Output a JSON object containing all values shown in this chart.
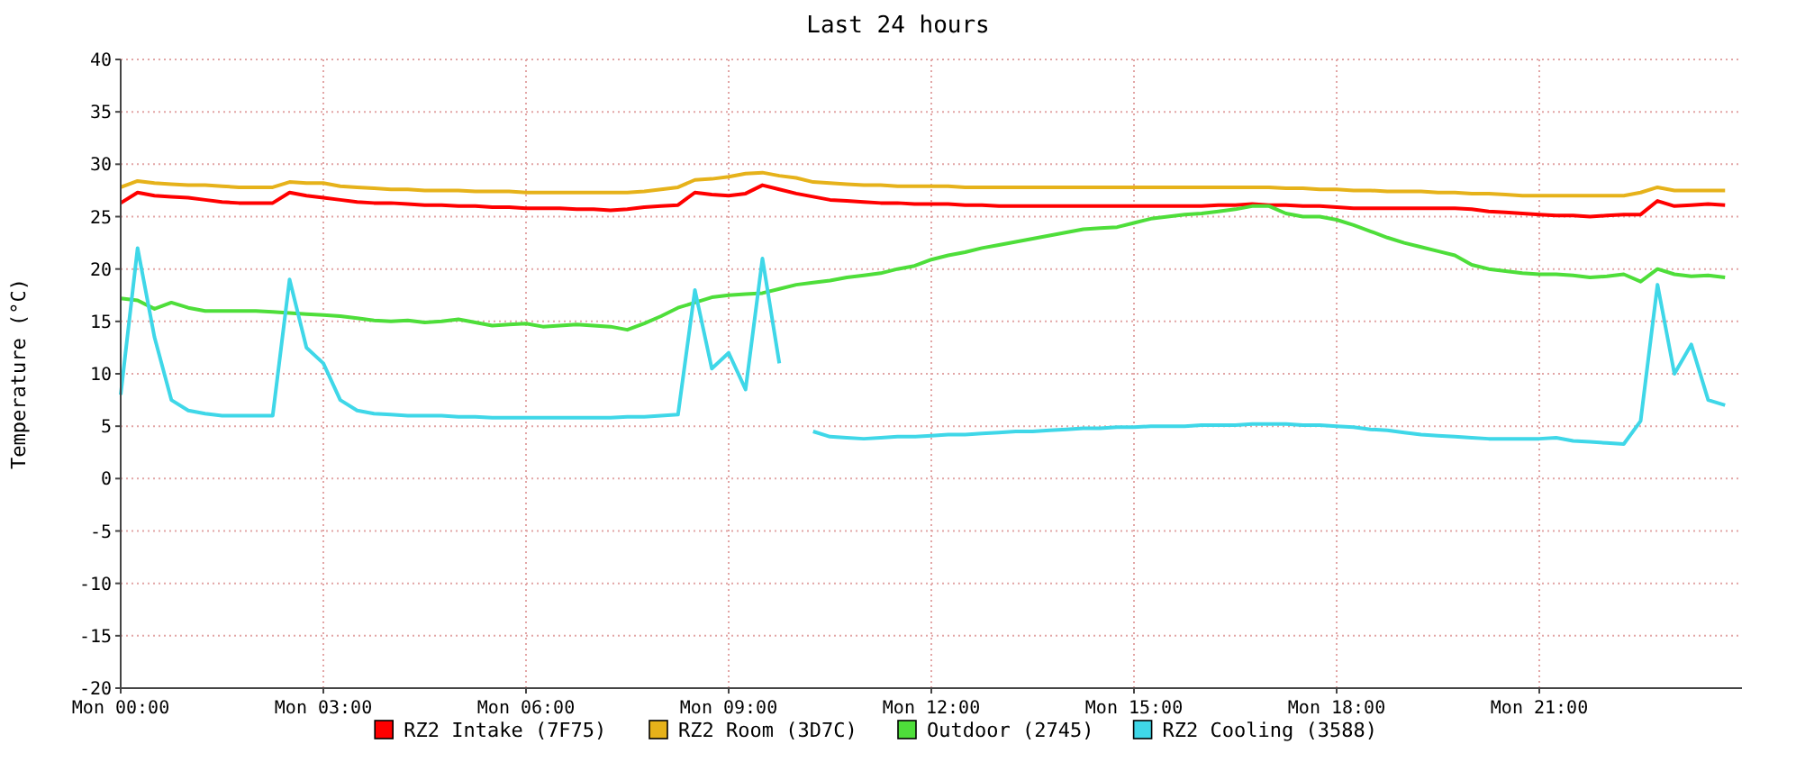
{
  "chart_data": {
    "type": "line",
    "title": "Last 24 hours",
    "ylabel": "Temperature (°C)",
    "categories": [
      "Mon 00:00",
      null,
      null,
      null,
      null,
      null,
      null,
      null,
      null,
      null,
      null,
      null,
      "Mon 03:00",
      null,
      null,
      null,
      null,
      null,
      null,
      null,
      null,
      null,
      null,
      null,
      "Mon 06:00",
      null,
      null,
      null,
      null,
      null,
      null,
      null,
      null,
      null,
      null,
      null,
      "Mon 09:00",
      null,
      null,
      null,
      null,
      null,
      null,
      null,
      null,
      null,
      null,
      null,
      "Mon 12:00",
      null,
      null,
      null,
      null,
      null,
      null,
      null,
      null,
      null,
      null,
      null,
      "Mon 15:00",
      null,
      null,
      null,
      null,
      null,
      null,
      null,
      null,
      null,
      null,
      null,
      "Mon 18:00",
      null,
      null,
      null,
      null,
      null,
      null,
      null,
      null,
      null,
      null,
      null,
      "Mon 21:00",
      null,
      null,
      null,
      null,
      null,
      null,
      null,
      null,
      null,
      null,
      null
    ],
    "ylim": [
      -20,
      40
    ],
    "yticks": [
      -20,
      -15,
      -10,
      -5,
      0,
      5,
      10,
      15,
      20,
      25,
      30,
      35,
      40
    ],
    "grid": true,
    "legend": "bottom",
    "marker": "none",
    "line_style": "solid",
    "series": [
      {
        "name": "RZ2 Intake (7F75)",
        "color": "#ff0000",
        "values": [
          26.3,
          27.3,
          27,
          26.9,
          26.8,
          26.6,
          26.4,
          26.3,
          26.3,
          26.3,
          27.3,
          27,
          26.8,
          26.6,
          26.4,
          26.3,
          26.3,
          26.2,
          26.1,
          26.1,
          26,
          26,
          25.9,
          25.9,
          25.8,
          25.8,
          25.8,
          25.7,
          25.7,
          25.6,
          25.7,
          25.9,
          26,
          26.1,
          27.3,
          27.1,
          27,
          27.2,
          28,
          27.6,
          27.2,
          26.9,
          26.6,
          26.5,
          26.4,
          26.3,
          26.3,
          26.2,
          26.2,
          26.2,
          26.1,
          26.1,
          26,
          26,
          26,
          26,
          26,
          26,
          26,
          26,
          26,
          26,
          26,
          26,
          26,
          26.1,
          26.1,
          26.2,
          26.1,
          26.1,
          26,
          26,
          25.9,
          25.8,
          25.8,
          25.8,
          25.8,
          25.8,
          25.8,
          25.8,
          25.7,
          25.5,
          25.4,
          25.3,
          25.2,
          25.1,
          25.1,
          25,
          25.1,
          25.2,
          25.2,
          26.5,
          26,
          26.1,
          26.2,
          26.1
        ]
      },
      {
        "name": "RZ2 Room (3D7C)",
        "color": "#e6b21a",
        "values": [
          27.8,
          28.4,
          28.2,
          28.1,
          28,
          28,
          27.9,
          27.8,
          27.8,
          27.8,
          28.3,
          28.2,
          28.2,
          27.9,
          27.8,
          27.7,
          27.6,
          27.6,
          27.5,
          27.5,
          27.5,
          27.4,
          27.4,
          27.4,
          27.3,
          27.3,
          27.3,
          27.3,
          27.3,
          27.3,
          27.3,
          27.4,
          27.6,
          27.8,
          28.5,
          28.6,
          28.8,
          29.1,
          29.2,
          28.9,
          28.7,
          28.3,
          28.2,
          28.1,
          28,
          28,
          27.9,
          27.9,
          27.9,
          27.9,
          27.8,
          27.8,
          27.8,
          27.8,
          27.8,
          27.8,
          27.8,
          27.8,
          27.8,
          27.8,
          27.8,
          27.8,
          27.8,
          27.8,
          27.8,
          27.8,
          27.8,
          27.8,
          27.8,
          27.7,
          27.7,
          27.6,
          27.6,
          27.5,
          27.5,
          27.4,
          27.4,
          27.4,
          27.3,
          27.3,
          27.2,
          27.2,
          27.1,
          27,
          27,
          27,
          27,
          27,
          27,
          27,
          27.3,
          27.8,
          27.5,
          27.5,
          27.5,
          27.5
        ]
      },
      {
        "name": "Outdoor (2745)",
        "color": "#4ede3a",
        "values": [
          17.2,
          17,
          16.2,
          16.8,
          16.3,
          16,
          16,
          16,
          16,
          15.9,
          15.8,
          15.7,
          15.6,
          15.5,
          15.3,
          15.1,
          15,
          15.1,
          14.9,
          15,
          15.2,
          14.9,
          14.6,
          14.7,
          14.8,
          14.5,
          14.6,
          14.7,
          14.6,
          14.5,
          14.2,
          14.8,
          15.5,
          16.3,
          16.8,
          17.3,
          17.5,
          17.6,
          17.7,
          18.1,
          18.5,
          18.7,
          18.9,
          19.2,
          19.4,
          19.6,
          20,
          20.3,
          20.9,
          21.3,
          21.6,
          22,
          22.3,
          22.6,
          22.9,
          23.2,
          23.5,
          23.8,
          23.9,
          24,
          24.4,
          24.8,
          25,
          25.2,
          25.3,
          25.5,
          25.7,
          26,
          26,
          25.3,
          25,
          25,
          24.7,
          24.2,
          23.6,
          23,
          22.5,
          22.1,
          21.7,
          21.3,
          20.4,
          20,
          19.8,
          19.6,
          19.5,
          19.5,
          19.4,
          19.2,
          19.3,
          19.5,
          18.8,
          20,
          19.5,
          19.3,
          19.4,
          19.2
        ]
      },
      {
        "name": "RZ2 Cooling (3588)",
        "color": "#3fd7e8",
        "values": [
          8,
          22,
          13.5,
          7.5,
          6.5,
          6.2,
          6,
          6,
          6,
          6,
          19,
          12.5,
          11,
          7.5,
          6.5,
          6.2,
          6.1,
          6,
          6,
          6,
          5.9,
          5.9,
          5.8,
          5.8,
          5.8,
          5.8,
          5.8,
          5.8,
          5.8,
          5.8,
          5.9,
          5.9,
          6,
          6.1,
          18,
          10.5,
          12,
          8.5,
          21,
          11,
          null,
          4.5,
          4,
          3.9,
          3.8,
          3.9,
          4,
          4,
          4.1,
          4.2,
          4.2,
          4.3,
          4.4,
          4.5,
          4.5,
          4.6,
          4.7,
          4.8,
          4.8,
          4.9,
          4.9,
          5,
          5,
          5,
          5.1,
          5.1,
          5.1,
          5.2,
          5.2,
          5.2,
          5.1,
          5.1,
          5,
          4.9,
          4.7,
          4.6,
          4.4,
          4.2,
          4.1,
          4,
          3.9,
          3.8,
          3.8,
          3.8,
          3.8,
          3.9,
          3.6,
          3.5,
          3.4,
          3.3,
          5.5,
          18.5,
          10,
          12.8,
          7.5,
          7
        ]
      }
    ]
  }
}
